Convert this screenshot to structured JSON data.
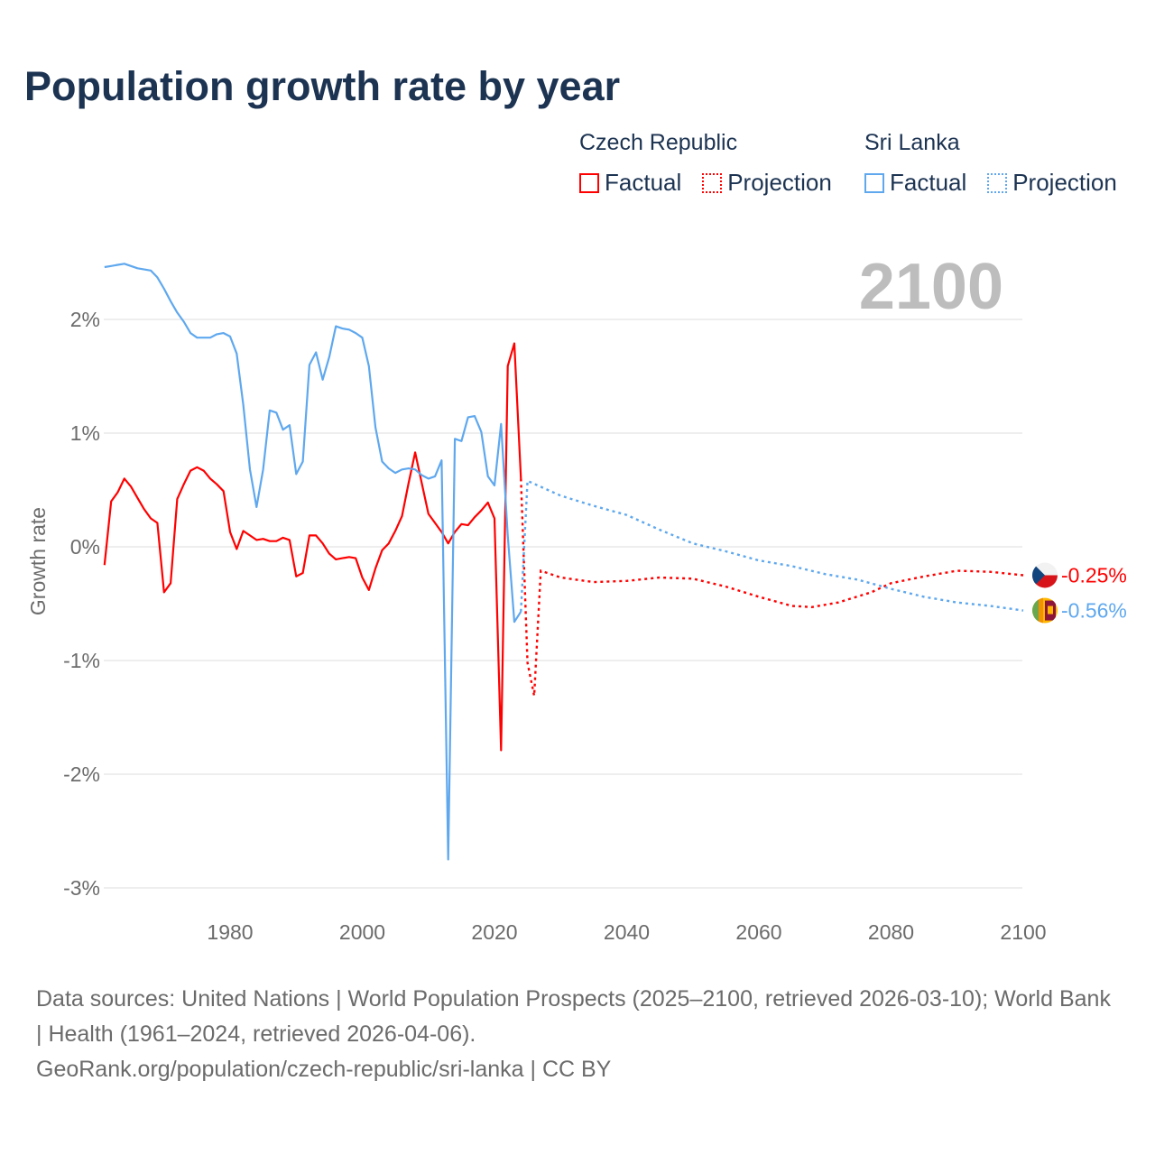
{
  "title": "Population growth rate by year",
  "legend": [
    {
      "country": "Czech Republic",
      "factual_label": "Factual",
      "projection_label": "Projection",
      "color": "#ff0000"
    },
    {
      "country": "Sri Lanka",
      "factual_label": "Factual",
      "projection_label": "Projection",
      "color": "#5fa8ee"
    }
  ],
  "year_display": "2100",
  "chart_data": {
    "type": "line",
    "title": "Population growth rate by year",
    "xlabel": "",
    "ylabel": "Growth rate",
    "xlim": [
      1961,
      2100
    ],
    "ylim": [
      -3.2,
      2.6
    ],
    "x_ticks": [
      1980,
      2000,
      2020,
      2040,
      2060,
      2080,
      2100
    ],
    "y_ticks": [
      {
        "v": 2,
        "label": "2%"
      },
      {
        "v": 1,
        "label": "1%"
      },
      {
        "v": 0,
        "label": "0%"
      },
      {
        "v": -1,
        "label": "-1%"
      },
      {
        "v": -2,
        "label": "-2%"
      },
      {
        "v": -3,
        "label": "-3%"
      }
    ],
    "grid": true,
    "series": [
      {
        "name": "Czech Republic",
        "color": "#ff0000",
        "end_label": "-0.25%",
        "factual": {
          "x_start": 1961,
          "values": [
            -0.16,
            0.4,
            0.48,
            0.6,
            0.53,
            0.43,
            0.33,
            0.25,
            0.21,
            -0.4,
            -0.32,
            0.42,
            0.55,
            0.67,
            0.7,
            0.67,
            0.6,
            0.55,
            0.49,
            0.13,
            -0.02,
            0.14,
            0.1,
            0.06,
            0.07,
            0.05,
            0.05,
            0.08,
            0.06,
            -0.26,
            -0.23,
            0.1,
            0.1,
            0.03,
            -0.06,
            -0.11,
            -0.1,
            -0.09,
            -0.1,
            -0.27,
            -0.38,
            -0.19,
            -0.03,
            0.03,
            0.14,
            0.27,
            0.56,
            0.83,
            0.56,
            0.29,
            0.21,
            0.13,
            0.03,
            0.13,
            0.2,
            0.19,
            0.26,
            0.32,
            0.39,
            0.25,
            -1.79,
            1.59,
            1.79,
            0.6
          ]
        },
        "projection": {
          "x": [
            2024,
            2025,
            2026,
            2027,
            2030,
            2035,
            2040,
            2045,
            2050,
            2055,
            2060,
            2065,
            2068,
            2072,
            2077,
            2080,
            2085,
            2090,
            2095,
            2100
          ],
          "values": [
            0.6,
            -1.02,
            -1.31,
            -0.21,
            -0.27,
            -0.31,
            -0.3,
            -0.27,
            -0.28,
            -0.35,
            -0.44,
            -0.52,
            -0.53,
            -0.49,
            -0.4,
            -0.32,
            -0.26,
            -0.21,
            -0.22,
            -0.25
          ]
        }
      },
      {
        "name": "Sri Lanka",
        "color": "#5fa8ee",
        "end_label": "-0.56%",
        "factual": {
          "x_start": 1961,
          "values": [
            2.46,
            2.47,
            2.48,
            2.49,
            2.47,
            2.45,
            2.44,
            2.43,
            2.37,
            2.27,
            2.16,
            2.06,
            1.98,
            1.88,
            1.84,
            1.84,
            1.84,
            1.87,
            1.88,
            1.85,
            1.7,
            1.25,
            0.68,
            0.35,
            0.68,
            1.2,
            1.18,
            1.03,
            1.07,
            0.64,
            0.75,
            1.6,
            1.71,
            1.47,
            1.67,
            1.94,
            1.92,
            1.91,
            1.88,
            1.84,
            1.59,
            1.05,
            0.75,
            0.69,
            0.65,
            0.68,
            0.69,
            0.68,
            0.63,
            0.6,
            0.62,
            0.76,
            -2.75,
            0.95,
            0.93,
            1.14,
            1.15,
            1.01,
            0.62,
            0.54,
            1.08,
            0.1,
            -0.66,
            -0.57
          ]
        },
        "projection": {
          "x": [
            2024,
            2025,
            2030,
            2035,
            2040,
            2045,
            2050,
            2055,
            2060,
            2065,
            2070,
            2075,
            2080,
            2085,
            2090,
            2095,
            2100
          ],
          "values": [
            -0.57,
            0.58,
            0.45,
            0.36,
            0.28,
            0.15,
            0.03,
            -0.04,
            -0.12,
            -0.17,
            -0.24,
            -0.29,
            -0.37,
            -0.44,
            -0.49,
            -0.52,
            -0.56
          ]
        }
      }
    ]
  },
  "footer": {
    "sources": "Data sources: United Nations | World Population Prospects (2025–2100, retrieved 2026-03-10); World Bank | Health (1961–2024, retrieved 2026-04-06).",
    "credit": "GeoRank.org/population/czech-republic/sri-lanka | CC BY"
  }
}
